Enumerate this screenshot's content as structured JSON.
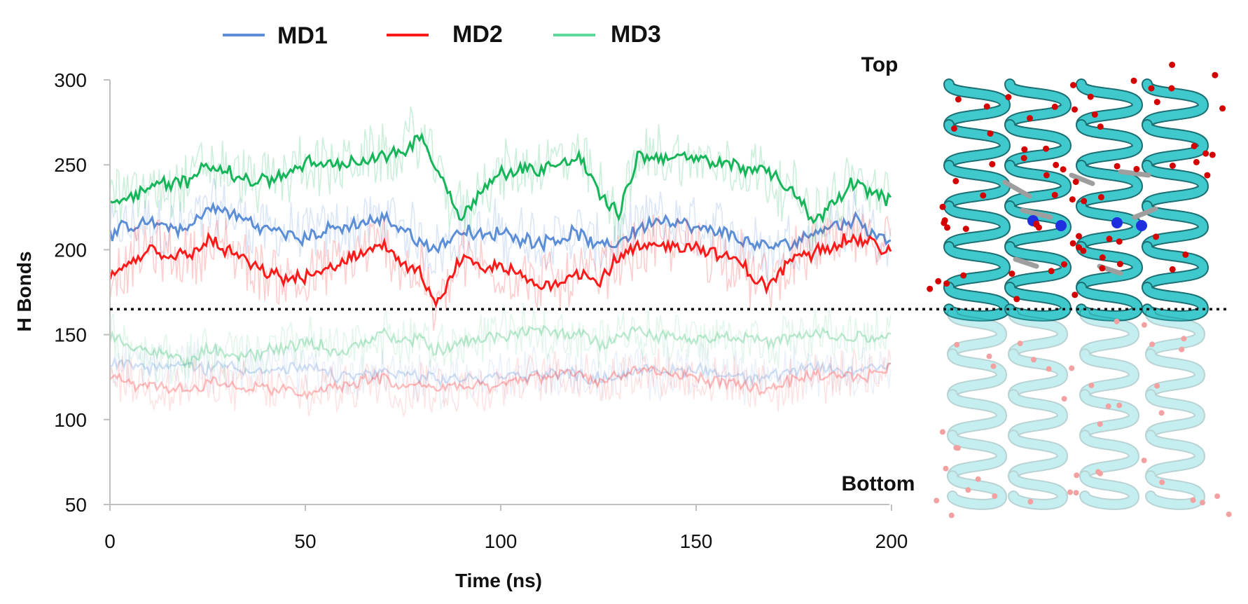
{
  "chart_data": {
    "type": "line",
    "title": "",
    "xlabel": "Time (ns)",
    "ylabel": "H Bonds",
    "xlim": [
      0,
      200
    ],
    "ylim": [
      50,
      300
    ],
    "xticks": [
      "0",
      "50",
      "100",
      "150",
      "200"
    ],
    "yticks": [
      "50",
      "100",
      "150",
      "200",
      "250",
      "300"
    ],
    "threshold_y": 165,
    "legend_position": "top-left",
    "colors": {
      "MD1": "#5b8ed6",
      "MD2": "#ff1a1a",
      "MD3": "#17b55a",
      "protein": "#3fc9cc"
    },
    "x": [
      0,
      10,
      20,
      25,
      30,
      40,
      50,
      60,
      70,
      75,
      80,
      83,
      90,
      95,
      100,
      110,
      120,
      125,
      130,
      135,
      140,
      150,
      160,
      168,
      175,
      180,
      190,
      200
    ],
    "series": [
      {
        "name": "MD1",
        "region": "Top",
        "values": [
          210,
          215,
          212,
          225,
          222,
          212,
          208,
          213,
          218,
          212,
          205,
          200,
          212,
          207,
          210,
          205,
          210,
          200,
          205,
          212,
          218,
          212,
          208,
          200,
          205,
          210,
          218,
          205
        ]
      },
      {
        "name": "MD2",
        "region": "Top",
        "values": [
          183,
          200,
          195,
          205,
          200,
          185,
          183,
          192,
          205,
          190,
          185,
          165,
          195,
          188,
          190,
          178,
          187,
          182,
          195,
          200,
          203,
          202,
          193,
          178,
          195,
          200,
          207,
          200
        ]
      },
      {
        "name": "MD3",
        "region": "Top",
        "values": [
          228,
          237,
          240,
          252,
          245,
          240,
          250,
          250,
          255,
          258,
          268,
          250,
          220,
          235,
          245,
          248,
          255,
          235,
          220,
          255,
          255,
          253,
          250,
          245,
          235,
          215,
          240,
          228
        ]
      },
      {
        "name": "MD1",
        "region": "Bottom",
        "values": [
          135,
          130,
          132,
          130,
          133,
          128,
          130,
          125,
          128,
          126,
          125,
          122,
          125,
          124,
          125,
          128,
          126,
          125,
          126,
          130,
          128,
          130,
          126,
          125,
          128,
          130,
          128,
          132
        ]
      },
      {
        "name": "MD2",
        "region": "Bottom",
        "values": [
          127,
          120,
          118,
          122,
          120,
          118,
          115,
          120,
          125,
          118,
          122,
          118,
          120,
          118,
          120,
          125,
          128,
          122,
          125,
          130,
          127,
          125,
          120,
          118,
          122,
          125,
          125,
          130
        ]
      },
      {
        "name": "MD3",
        "region": "Bottom",
        "values": [
          150,
          140,
          135,
          140,
          138,
          140,
          145,
          140,
          150,
          145,
          148,
          140,
          145,
          148,
          150,
          152,
          150,
          145,
          150,
          152,
          150,
          148,
          150,
          145,
          148,
          150,
          148,
          148
        ]
      }
    ],
    "legend": [
      "MD1",
      "MD2",
      "MD3"
    ],
    "annotations": [
      "Top",
      "Bottom"
    ]
  }
}
